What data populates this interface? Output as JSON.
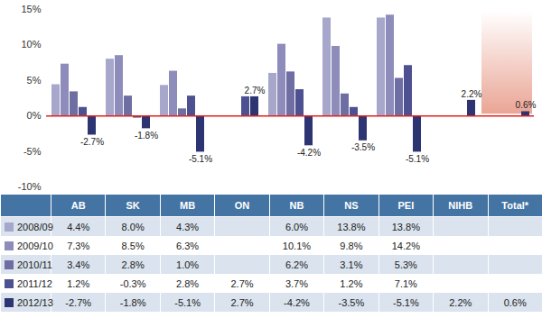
{
  "chart_data": {
    "type": "bar",
    "categories": [
      "AB",
      "SK",
      "MB",
      "ON",
      "NB",
      "NS",
      "PEI",
      "NIHB",
      "Total*"
    ],
    "series": [
      {
        "name": "2008/09",
        "color": "#a7a6cb",
        "values": [
          4.4,
          8.0,
          4.3,
          null,
          6.0,
          13.8,
          13.8,
          null,
          null
        ],
        "value_labels": [
          "4.4%",
          "8.0%",
          "4.3%",
          null,
          "6.0%",
          "13.8%",
          "13.8%",
          null,
          null
        ]
      },
      {
        "name": "2009/10",
        "color": "#8d8cbb",
        "values": [
          7.3,
          8.5,
          6.3,
          null,
          10.1,
          9.8,
          14.2,
          null,
          null
        ],
        "value_labels": [
          "7.3%",
          "8.5%",
          "6.3%",
          null,
          "10.1%",
          "9.8%",
          "14.2%",
          null,
          null
        ]
      },
      {
        "name": "2010/11",
        "color": "#6e6ea3",
        "values": [
          3.4,
          2.8,
          1.0,
          null,
          6.2,
          3.1,
          5.3,
          null,
          null
        ],
        "value_labels": [
          "3.4%",
          "2.8%",
          "1.0%",
          null,
          "6.2%",
          "3.1%",
          "5.3%",
          null,
          null
        ]
      },
      {
        "name": "2011/12",
        "color": "#4d5192",
        "values": [
          1.2,
          -0.3,
          2.8,
          2.7,
          3.7,
          1.2,
          7.1,
          null,
          null
        ],
        "value_labels": [
          "1.2%",
          "-0.3%",
          "2.8%",
          "2.7%",
          "3.7%",
          "1.2%",
          "7.1%",
          null,
          null
        ]
      },
      {
        "name": "2012/13",
        "color": "#2c3471",
        "data_labels": true,
        "values": [
          -2.7,
          -1.8,
          -5.1,
          2.7,
          -4.2,
          -3.5,
          -5.1,
          2.2,
          0.6
        ],
        "value_labels": [
          "-2.7%",
          "-1.8%",
          "-5.1%",
          "2.7%",
          "-4.2%",
          "-3.5%",
          "-5.1%",
          "2.2%",
          "0.6%"
        ]
      }
    ],
    "ylim": [
      -10,
      15
    ],
    "yticks": [
      {
        "value": -10,
        "label": "-10%"
      },
      {
        "value": -5,
        "label": "-5%"
      },
      {
        "value": 0,
        "label": "0%"
      },
      {
        "value": 5,
        "label": "5%"
      },
      {
        "value": 10,
        "label": "10%"
      },
      {
        "value": 15,
        "label": "15%"
      }
    ],
    "grid": false
  }
}
